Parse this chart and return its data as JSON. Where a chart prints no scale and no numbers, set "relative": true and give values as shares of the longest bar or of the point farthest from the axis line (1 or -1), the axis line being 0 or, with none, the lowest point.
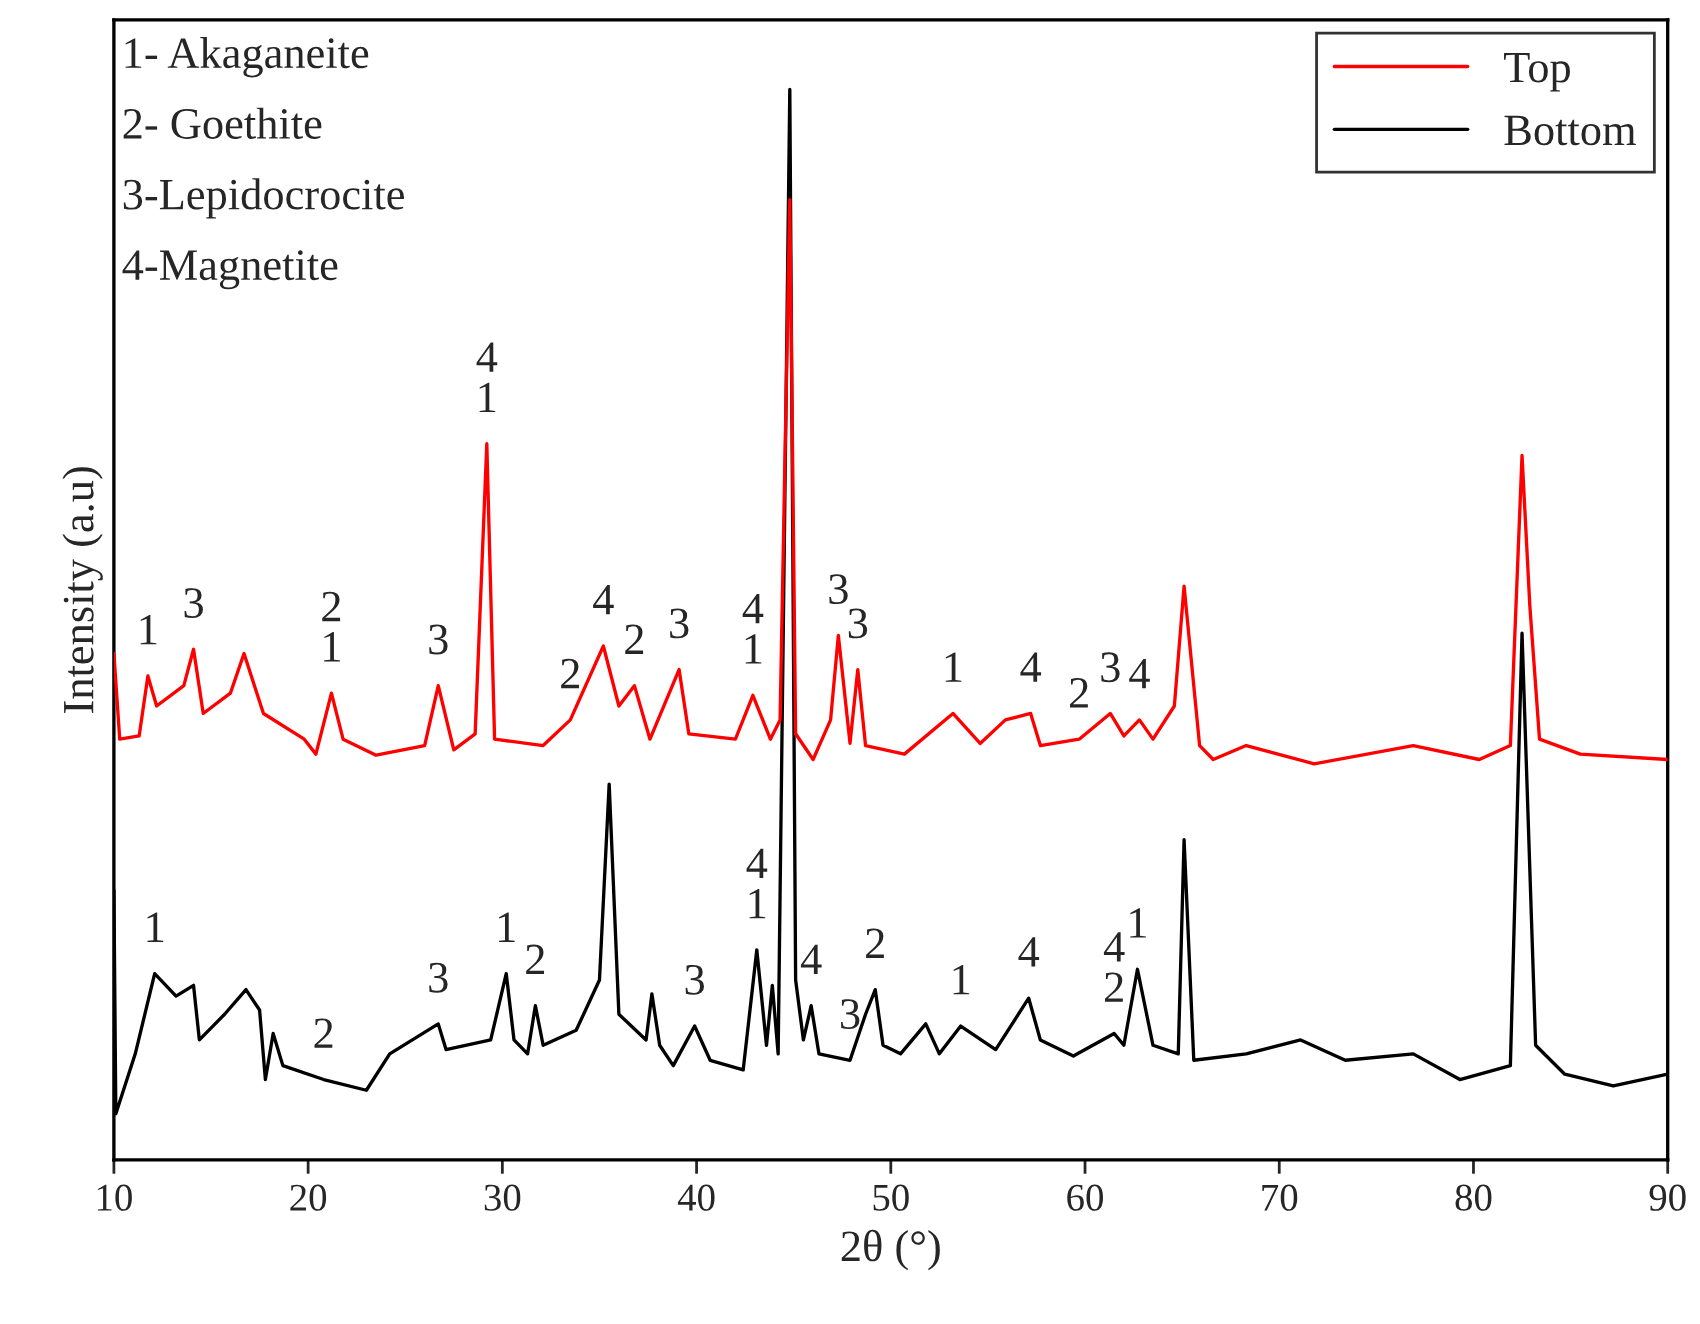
{
  "chart_data": {
    "type": "line",
    "relative": true,
    "xlabel": "2θ (°)",
    "ylabel": "Intensity (a.u)",
    "xlim": [
      10,
      90
    ],
    "xticks": [
      10,
      20,
      30,
      40,
      50,
      60,
      70,
      80,
      90
    ],
    "legend": "top right",
    "grid": false,
    "series": [
      {
        "name": "Top",
        "color": "#ff0000",
        "x": [
          10.0,
          10.3,
          11.3,
          11.75,
          12.2,
          13.6,
          14.1,
          14.6,
          16.0,
          16.7,
          17.7,
          19.8,
          20.4,
          21.2,
          21.8,
          23.5,
          26.0,
          26.7,
          27.5,
          28.6,
          29.2,
          29.6,
          32.1,
          33.5,
          35.2,
          36.0,
          36.8,
          37.6,
          39.1,
          39.6,
          42.0,
          42.9,
          43.8,
          44.3,
          44.8,
          45.1,
          46.0,
          46.9,
          47.3,
          47.9,
          48.3,
          48.7,
          50.7,
          53.2,
          54.6,
          55.9,
          57.2,
          57.7,
          59.7,
          61.3,
          62.0,
          62.8,
          63.5,
          64.6,
          65.1,
          65.9,
          66.6,
          68.3,
          71.8,
          76.9,
          80.3,
          81.9,
          82.5,
          82.9,
          83.4,
          85.5,
          90.0
        ],
        "values": [
          0.473,
          0.393,
          0.396,
          0.452,
          0.424,
          0.443,
          0.477,
          0.417,
          0.436,
          0.473,
          0.417,
          0.393,
          0.379,
          0.436,
          0.393,
          0.378,
          0.387,
          0.443,
          0.383,
          0.398,
          0.669,
          0.393,
          0.387,
          0.411,
          0.48,
          0.424,
          0.443,
          0.393,
          0.458,
          0.398,
          0.393,
          0.434,
          0.393,
          0.411,
          0.897,
          0.398,
          0.374,
          0.411,
          0.49,
          0.389,
          0.458,
          0.387,
          0.379,
          0.417,
          0.389,
          0.411,
          0.417,
          0.387,
          0.393,
          0.417,
          0.396,
          0.411,
          0.393,
          0.424,
          0.536,
          0.387,
          0.374,
          0.387,
          0.37,
          0.387,
          0.374,
          0.387,
          0.658,
          0.518,
          0.393,
          0.379,
          0.374
        ]
      },
      {
        "name": "Bottom",
        "color": "#000000",
        "x": [
          10.0,
          10.1,
          11.1,
          12.1,
          13.2,
          14.1,
          14.4,
          15.7,
          16.8,
          17.5,
          17.8,
          18.2,
          18.7,
          20.8,
          23.0,
          24.2,
          26.7,
          27.1,
          29.4,
          30.2,
          30.6,
          31.3,
          31.7,
          32.1,
          33.8,
          35.0,
          35.5,
          36.0,
          37.4,
          37.7,
          38.1,
          38.8,
          39.9,
          40.7,
          42.4,
          43.1,
          43.6,
          43.9,
          44.2,
          44.8,
          45.1,
          45.5,
          45.9,
          46.3,
          47.9,
          48.7,
          49.2,
          49.6,
          50.5,
          51.8,
          52.5,
          53.6,
          55.4,
          57.1,
          57.7,
          59.4,
          61.5,
          62.0,
          62.7,
          63.5,
          64.8,
          65.1,
          65.6,
          68.3,
          71.1,
          73.4,
          76.9,
          79.3,
          81.9,
          82.5,
          83.2,
          84.7,
          87.2,
          90.0
        ],
        "values": [
          0.252,
          0.043,
          0.099,
          0.174,
          0.153,
          0.163,
          0.112,
          0.136,
          0.159,
          0.14,
          0.075,
          0.118,
          0.088,
          0.075,
          0.065,
          0.099,
          0.127,
          0.103,
          0.112,
          0.174,
          0.112,
          0.099,
          0.144,
          0.107,
          0.121,
          0.168,
          0.351,
          0.136,
          0.112,
          0.155,
          0.107,
          0.088,
          0.125,
          0.093,
          0.084,
          0.196,
          0.107,
          0.163,
          0.099,
          1.0,
          0.168,
          0.112,
          0.144,
          0.099,
          0.093,
          0.136,
          0.159,
          0.107,
          0.099,
          0.127,
          0.099,
          0.125,
          0.103,
          0.151,
          0.112,
          0.097,
          0.118,
          0.107,
          0.178,
          0.107,
          0.099,
          0.299,
          0.093,
          0.099,
          0.112,
          0.093,
          0.099,
          0.075,
          0.088,
          0.492,
          0.107,
          0.08,
          0.069,
          0.08
        ]
      }
    ],
    "annotations": [
      "1- Akaganeite",
      "2- Goethite",
      "3-Lepidocrocite",
      "4-Magnetite",
      {
        "text": "1",
        "x": 11.75,
        "y": 0.452
      },
      {
        "text": "3",
        "x": 14.1,
        "y": 0.477
      },
      {
        "text": "2\n1",
        "x": 21.2,
        "y": 0.436
      },
      {
        "text": "3",
        "x": 26.7,
        "y": 0.443
      },
      {
        "text": "4\n1",
        "x": 29.2,
        "y": 0.669
      },
      {
        "text": "2",
        "x": 33.5,
        "y": 0.411
      },
      {
        "text": "4",
        "x": 35.2,
        "y": 0.48
      },
      {
        "text": "2",
        "x": 36.8,
        "y": 0.443
      },
      {
        "text": "3",
        "x": 39.1,
        "y": 0.458
      },
      {
        "text": "4\n1",
        "x": 42.9,
        "y": 0.434
      },
      {
        "text": "3",
        "x": 47.3,
        "y": 0.49
      },
      {
        "text": "3",
        "x": 48.3,
        "y": 0.458
      },
      {
        "text": "1",
        "x": 53.2,
        "y": 0.417
      },
      {
        "text": "4",
        "x": 57.2,
        "y": 0.417
      },
      {
        "text": "2",
        "x": 59.7,
        "y": 0.393
      },
      {
        "text": "3",
        "x": 61.3,
        "y": 0.417
      },
      {
        "text": "4",
        "x": 62.8,
        "y": 0.411
      },
      {
        "text": "1",
        "x": 12.1,
        "y": 0.174
      },
      {
        "text": "2",
        "x": 20.8,
        "y": 0.075
      },
      {
        "text": "3",
        "x": 26.7,
        "y": 0.127
      },
      {
        "text": "1",
        "x": 30.2,
        "y": 0.174
      },
      {
        "text": "2",
        "x": 31.7,
        "y": 0.144
      },
      {
        "text": "3",
        "x": 39.9,
        "y": 0.125
      },
      {
        "text": "4\n1",
        "x": 43.1,
        "y": 0.196
      },
      {
        "text": "4",
        "x": 45.9,
        "y": 0.144
      },
      {
        "text": "3",
        "x": 47.9,
        "y": 0.093
      },
      {
        "text": "2",
        "x": 49.2,
        "y": 0.159
      },
      {
        "text": "1",
        "x": 53.6,
        "y": 0.125
      },
      {
        "text": "4",
        "x": 57.1,
        "y": 0.151
      },
      {
        "text": "4\n2",
        "x": 61.5,
        "y": 0.118
      },
      {
        "text": "1",
        "x": 62.7,
        "y": 0.178
      }
    ]
  }
}
